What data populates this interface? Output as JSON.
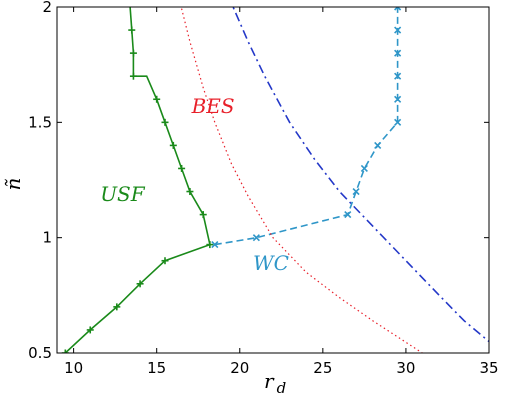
{
  "chart_data": {
    "type": "line",
    "xlabel": "r",
    "xlabel_sub": "d",
    "ylabel": "ñ",
    "xlim": [
      9,
      35
    ],
    "ylim": [
      0.5,
      2
    ],
    "xticks": [
      10,
      15,
      20,
      25,
      30,
      35
    ],
    "yticks": [
      0.5,
      1,
      1.5,
      2
    ],
    "xtick_labels": [
      "10",
      "15",
      "20",
      "25",
      "30",
      "35"
    ],
    "ytick_labels": [
      "0.5",
      "1",
      "1.5",
      "2"
    ],
    "grid": false,
    "annotations": [
      {
        "text": "USF",
        "x": 11.6,
        "y": 1.16,
        "color": "#1a8a1a"
      },
      {
        "text": "BES",
        "x": 17.1,
        "y": 1.54,
        "color": "#e8202a"
      },
      {
        "text": "WC",
        "x": 20.8,
        "y": 0.86,
        "color": "#2f96c8"
      }
    ],
    "series": [
      {
        "color": "#1a8a1a",
        "style": "solid",
        "marker": "+",
        "points": [
          [
            9.5,
            0.5
          ],
          [
            11.0,
            0.6
          ],
          [
            12.6,
            0.7
          ],
          [
            14.0,
            0.8
          ],
          [
            15.5,
            0.9
          ],
          [
            18.2,
            0.97
          ],
          [
            17.8,
            1.1
          ],
          [
            17.0,
            1.2
          ],
          [
            16.5,
            1.3
          ],
          [
            16.0,
            1.4
          ],
          [
            15.5,
            1.5
          ],
          [
            15.0,
            1.6
          ],
          [
            14.4,
            1.7
          ],
          [
            13.6,
            1.7
          ],
          [
            13.6,
            1.8
          ],
          [
            13.5,
            1.9
          ],
          [
            13.4,
            2.0
          ],
          [
            13.2,
            2.05
          ]
        ],
        "markers": [
          [
            9.5,
            0.5
          ],
          [
            11.0,
            0.6
          ],
          [
            12.6,
            0.7
          ],
          [
            14.0,
            0.8
          ],
          [
            15.5,
            0.9
          ],
          [
            18.2,
            0.97
          ],
          [
            17.8,
            1.1
          ],
          [
            17.0,
            1.2
          ],
          [
            16.5,
            1.3
          ],
          [
            16.0,
            1.4
          ],
          [
            15.5,
            1.5
          ],
          [
            15.0,
            1.6
          ],
          [
            13.6,
            1.7
          ],
          [
            13.6,
            1.8
          ],
          [
            13.5,
            1.9
          ]
        ]
      },
      {
        "color": "#2f96c8",
        "style": "dashed",
        "marker": "x",
        "points": [
          [
            18.5,
            0.97
          ],
          [
            21.0,
            1.0
          ],
          [
            26.5,
            1.1
          ],
          [
            27.0,
            1.2
          ],
          [
            27.5,
            1.3
          ],
          [
            28.3,
            1.4
          ],
          [
            29.5,
            1.5
          ],
          [
            29.5,
            1.6
          ],
          [
            29.5,
            1.7
          ],
          [
            29.5,
            1.8
          ],
          [
            29.5,
            1.9
          ],
          [
            29.5,
            2.0
          ]
        ],
        "markers": [
          [
            18.5,
            0.97
          ],
          [
            21.0,
            1.0
          ],
          [
            26.5,
            1.1
          ],
          [
            27.0,
            1.2
          ],
          [
            27.5,
            1.3
          ],
          [
            28.3,
            1.4
          ],
          [
            29.5,
            1.5
          ],
          [
            29.5,
            1.6
          ],
          [
            29.5,
            1.7
          ],
          [
            29.5,
            1.8
          ],
          [
            29.5,
            1.9
          ],
          [
            29.5,
            2.0
          ]
        ]
      },
      {
        "color": "#e8202a",
        "style": "dotted",
        "marker": "none",
        "points": [
          [
            16.3,
            2.05
          ],
          [
            17.0,
            1.85
          ],
          [
            17.8,
            1.65
          ],
          [
            18.5,
            1.5
          ],
          [
            19.5,
            1.32
          ],
          [
            20.5,
            1.18
          ],
          [
            22.0,
            1.0
          ],
          [
            24.0,
            0.85
          ],
          [
            26.0,
            0.74
          ],
          [
            28.0,
            0.64
          ],
          [
            29.5,
            0.57
          ],
          [
            31.2,
            0.49
          ]
        ],
        "markers": []
      },
      {
        "color": "#2438c8",
        "style": "dashdot",
        "marker": "none",
        "points": [
          [
            19.3,
            2.05
          ],
          [
            20.5,
            1.85
          ],
          [
            21.5,
            1.7
          ],
          [
            23.0,
            1.5
          ],
          [
            24.5,
            1.34
          ],
          [
            26.0,
            1.2
          ],
          [
            28.0,
            1.05
          ],
          [
            30.0,
            0.9
          ],
          [
            32.0,
            0.75
          ],
          [
            33.5,
            0.64
          ],
          [
            35.0,
            0.55
          ]
        ],
        "markers": []
      }
    ]
  }
}
